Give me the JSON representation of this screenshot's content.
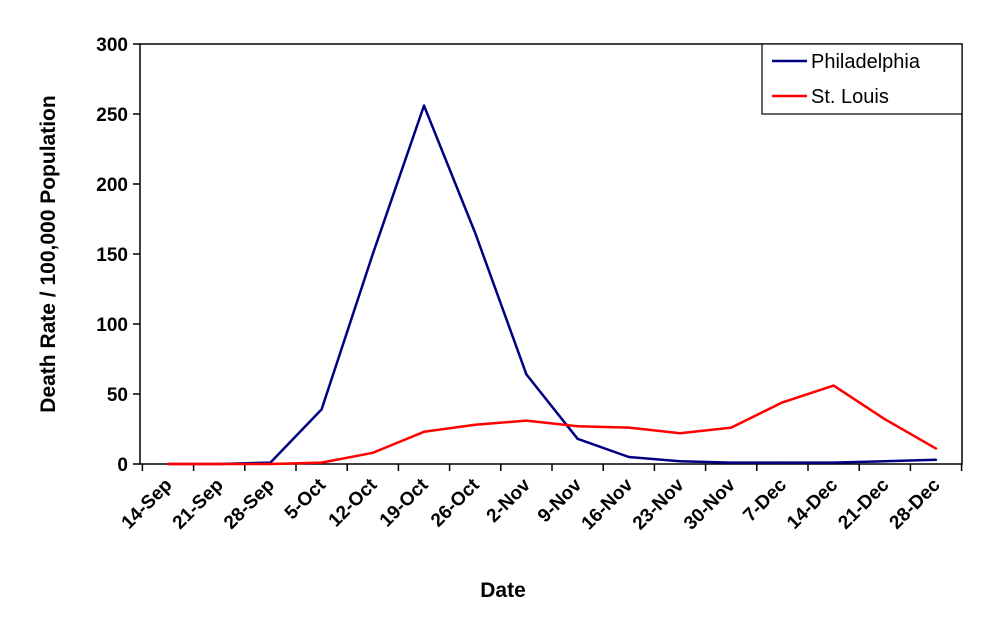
{
  "chart_data": {
    "type": "line",
    "xlabel": "Date",
    "ylabel": "Death Rate / 100,000 Population",
    "ylim": [
      0,
      300
    ],
    "yticks": [
      "0",
      "50",
      "100",
      "150",
      "200",
      "250",
      "300"
    ],
    "categories": [
      "14-Sep",
      "21-Sep",
      "28-Sep",
      "5-Oct",
      "12-Oct",
      "19-Oct",
      "26-Oct",
      "2-Nov",
      "9-Nov",
      "16-Nov",
      "23-Nov",
      "30-Nov",
      "7-Dec",
      "14-Dec",
      "21-Dec",
      "28-Dec"
    ],
    "x": [
      "14-Sep",
      "21-Sep",
      "28-Sep",
      "5-Oct",
      "12-Oct",
      "19-Oct",
      "26-Oct",
      "2-Nov",
      "9-Nov",
      "16-Nov",
      "23-Nov",
      "30-Nov",
      "7-Dec",
      "14-Dec",
      "21-Dec",
      "28-Dec"
    ],
    "grid": false,
    "legend_position": "top-right",
    "series": [
      {
        "name": "Philadelphia",
        "color": "#000080",
        "values": [
          0,
          0,
          1,
          39,
          150,
          256,
          165,
          64,
          18,
          5,
          2,
          1,
          1,
          1,
          2,
          3
        ]
      },
      {
        "name": "St. Louis",
        "color": "#ff0000",
        "values": [
          0,
          0,
          0,
          1,
          8,
          23,
          28,
          31,
          27,
          26,
          22,
          26,
          44,
          56,
          32,
          11
        ]
      }
    ]
  }
}
